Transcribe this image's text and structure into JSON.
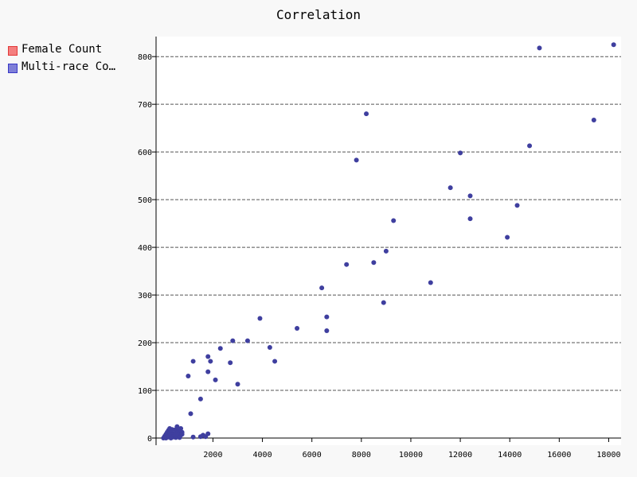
{
  "chart_data": {
    "type": "scatter",
    "title": "Correlation",
    "xlabel": "",
    "ylabel": "",
    "xlim": [
      -300,
      18500
    ],
    "ylim": [
      -15,
      842
    ],
    "x_ticks": [
      2000,
      4000,
      6000,
      8000,
      10000,
      12000,
      14000,
      16000,
      18000
    ],
    "y_ticks": [
      0,
      100,
      200,
      300,
      400,
      500,
      600,
      700,
      800
    ],
    "grid": "horizontal dashed",
    "legend": [
      {
        "name": "Female Count",
        "color": "#ff0000"
      },
      {
        "name": "Multi-race Count",
        "color": "#0000cc"
      }
    ],
    "series": [
      {
        "name": "Multi-race Count",
        "color": "#3f3f9f",
        "points": [
          [
            18200,
            825
          ],
          [
            15200,
            818
          ],
          [
            17400,
            667
          ],
          [
            14800,
            613
          ],
          [
            8200,
            680
          ],
          [
            12000,
            598
          ],
          [
            7800,
            583
          ],
          [
            11600,
            525
          ],
          [
            12400,
            508
          ],
          [
            14300,
            488
          ],
          [
            12400,
            460
          ],
          [
            9300,
            456
          ],
          [
            13900,
            421
          ],
          [
            9000,
            392
          ],
          [
            8500,
            368
          ],
          [
            7400,
            364
          ],
          [
            10800,
            326
          ],
          [
            6400,
            315
          ],
          [
            8900,
            284
          ],
          [
            6600,
            254
          ],
          [
            6600,
            225
          ],
          [
            5400,
            230
          ],
          [
            3900,
            251
          ],
          [
            2800,
            204
          ],
          [
            3400,
            204
          ],
          [
            2300,
            188
          ],
          [
            4300,
            190
          ],
          [
            1800,
            171
          ],
          [
            1200,
            161
          ],
          [
            1900,
            161
          ],
          [
            2700,
            158
          ],
          [
            4500,
            161
          ],
          [
            1800,
            139
          ],
          [
            2100,
            122
          ],
          [
            1000,
            130
          ],
          [
            3000,
            113
          ],
          [
            1500,
            82
          ],
          [
            1100,
            51
          ],
          [
            1200,
            2
          ],
          [
            1500,
            3
          ],
          [
            1600,
            6
          ],
          [
            1700,
            3
          ],
          [
            1800,
            9
          ],
          [
            0,
            0
          ],
          [
            50,
            4
          ],
          [
            100,
            8
          ],
          [
            150,
            12
          ],
          [
            200,
            16
          ],
          [
            250,
            20
          ],
          [
            300,
            14
          ],
          [
            350,
            6
          ],
          [
            400,
            2
          ],
          [
            450,
            10
          ],
          [
            500,
            18
          ],
          [
            550,
            24
          ],
          [
            600,
            8
          ],
          [
            650,
            4
          ],
          [
            700,
            20
          ],
          [
            750,
            12
          ],
          [
            100,
            0
          ],
          [
            200,
            2
          ],
          [
            300,
            4
          ],
          [
            400,
            7
          ],
          [
            500,
            1
          ],
          [
            600,
            15
          ],
          [
            700,
            6
          ],
          [
            150,
            3
          ],
          [
            250,
            9
          ],
          [
            350,
            18
          ],
          [
            450,
            5
          ],
          [
            550,
            11
          ],
          [
            650,
            1
          ],
          [
            50,
            1
          ],
          [
            300,
            0
          ],
          [
            500,
            8
          ],
          [
            750,
            8
          ]
        ]
      }
    ]
  }
}
